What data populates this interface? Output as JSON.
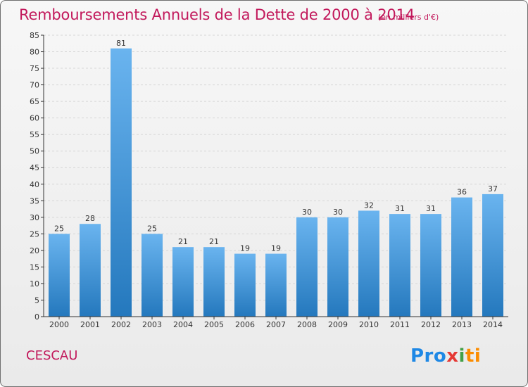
{
  "header": {
    "title": "Remboursements Annuels de la Dette de 2000 à 2014",
    "unit": "(en milliers d'€)"
  },
  "footer": {
    "commune": "CESCAU",
    "logo_parts": [
      "Pro",
      "x",
      "i",
      "ti"
    ]
  },
  "colors": {
    "title": "#c2185b",
    "bar_top": "#6ab4ef",
    "bar_bottom": "#2478bd",
    "grid": "#d6d6d6"
  },
  "chart_data": {
    "type": "bar",
    "title": "Remboursements Annuels de la Dette de 2000 à 2014",
    "xlabel": "",
    "ylabel": "",
    "categories": [
      "2000",
      "2001",
      "2002",
      "2003",
      "2004",
      "2005",
      "2006",
      "2007",
      "2008",
      "2009",
      "2010",
      "2011",
      "2012",
      "2013",
      "2014"
    ],
    "values": [
      25,
      28,
      81,
      25,
      21,
      21,
      19,
      19,
      30,
      30,
      32,
      31,
      31,
      36,
      37
    ],
    "ylim": [
      0,
      85
    ],
    "yticks": [
      0,
      5,
      10,
      15,
      20,
      25,
      30,
      35,
      40,
      45,
      50,
      55,
      60,
      65,
      70,
      75,
      80,
      85
    ],
    "grid": "horizontal dashed",
    "legend": "none"
  }
}
